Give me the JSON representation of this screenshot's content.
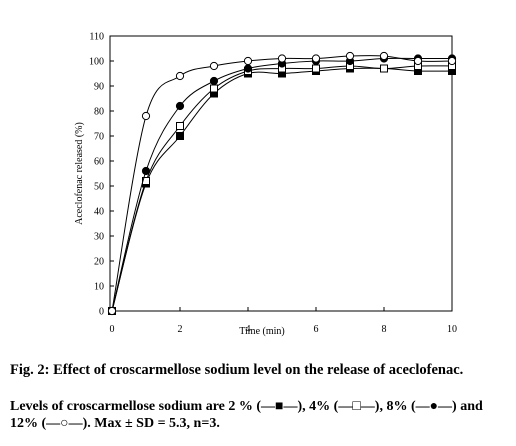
{
  "figure": {
    "caption_title": "Fig. 2: Effect of croscarmellose sodium level on the release of aceclofenac.",
    "caption_body": "Levels of croscarmellose sodium are 2 % (—■—), 4% (—□—), 8% (—●—) and 12% (—○—). Max ± SD = 5.3, n=3."
  },
  "chart_data": {
    "type": "line",
    "title": "",
    "xlabel": "Time (min)",
    "ylabel": "Aceclofenac released (%)",
    "xlim": [
      0,
      10
    ],
    "ylim": [
      0,
      110
    ],
    "x_ticks": [
      0,
      2,
      4,
      6,
      8,
      10
    ],
    "y_ticks": [
      0,
      10,
      20,
      30,
      40,
      50,
      60,
      70,
      80,
      90,
      100,
      110
    ],
    "grid": false,
    "x": [
      0,
      1,
      2,
      3,
      4,
      5,
      6,
      7,
      8,
      9,
      10
    ],
    "series": [
      {
        "marker": "filled-square",
        "values": [
          0,
          51,
          70,
          87,
          95,
          95,
          96,
          97,
          97,
          96,
          96
        ]
      },
      {
        "marker": "open-square",
        "values": [
          0,
          52,
          74,
          89,
          96,
          97,
          97,
          98,
          97,
          98,
          98
        ]
      },
      {
        "marker": "filled-circle",
        "values": [
          0,
          56,
          82,
          92,
          97,
          99,
          100,
          100,
          101,
          101,
          101
        ]
      },
      {
        "marker": "open-circle",
        "values": [
          0,
          78,
          94,
          98,
          100,
          101,
          101,
          102,
          102,
          100,
          100
        ]
      }
    ],
    "colors": {
      "line": "#000000",
      "marker_fill_open": "#ffffff",
      "marker_fill_solid": "#000000"
    }
  }
}
